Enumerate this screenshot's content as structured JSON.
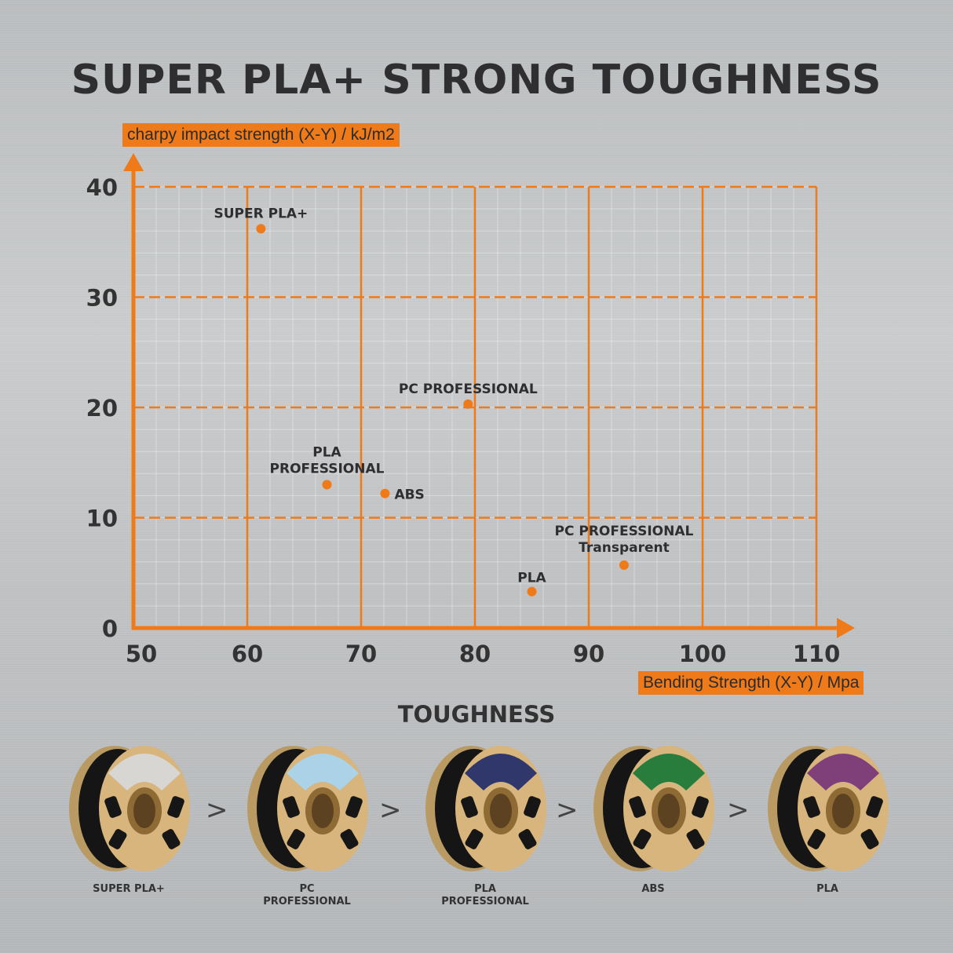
{
  "title": "SUPER PLA+ STRONG TOUGHNESS",
  "chart_data": {
    "type": "scatter",
    "title": "SUPER PLA+ STRONG TOUGHNESS",
    "xlabel": "Bending Strength (X-Y) / Mpa",
    "ylabel": "charpy impact strength (X-Y) / kJ/m2",
    "xlim": [
      50,
      110
    ],
    "ylim": [
      0,
      40
    ],
    "xticks": [
      "50",
      "60",
      "70",
      "80",
      "90",
      "100",
      "110"
    ],
    "yticks": [
      "0",
      "10",
      "20",
      "30",
      "40"
    ],
    "grid": true,
    "colors": {
      "accent": "#ee7a1a",
      "text": "#2f2f31"
    },
    "points": [
      {
        "label": "SUPER PLA+",
        "x": 61.2,
        "y": 36.2
      },
      {
        "label": "PC PROFESSIONAL",
        "x": 79.4,
        "y": 20.3
      },
      {
        "label": "PLA PROFESSIONAL",
        "x": 67.0,
        "y": 13.0
      },
      {
        "label": "ABS",
        "x": 72.1,
        "y": 12.2
      },
      {
        "label": "PC PROFESSIONAL Transparent",
        "x": 93.1,
        "y": 5.7
      },
      {
        "label": "PLA",
        "x": 85.0,
        "y": 3.3
      }
    ]
  },
  "ranking": {
    "title": "TOUGHNESS",
    "separator": ">",
    "items": [
      {
        "label": "SUPER PLA+",
        "label_color": "#d8d8d8"
      },
      {
        "label": "PC\nPROFESSIONAL",
        "label_color": "#a9d4ec"
      },
      {
        "label": "PLA\nPROFESSIONAL",
        "label_color": "#27306a"
      },
      {
        "label": "ABS",
        "label_color": "#1f7a3a"
      },
      {
        "label": "PLA",
        "label_color": "#7a3a7a"
      }
    ]
  }
}
